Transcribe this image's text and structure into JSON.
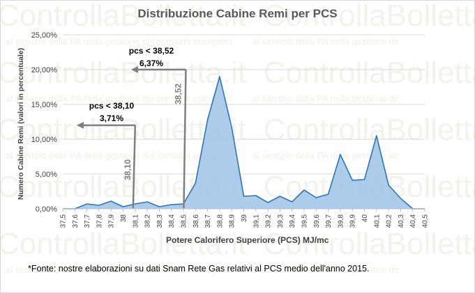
{
  "watermark": {
    "brand": "ControllaBolletta.it",
    "tagline_left": "al servizio della PA nella gestione dei consumi energetici",
    "tagline_right": "al servizio della PA nella gestione de"
  },
  "colors": {
    "area_fill": "#9dc3e6",
    "area_line": "#2e75b6",
    "annotation": "#7f7f7f",
    "grid": "#d9d9d9"
  },
  "chart_data": {
    "type": "area",
    "title": "Distribuzione  Cabine  Remi per PCS",
    "xlabel": "Potere Calorifero Superiore (PCS) MJ/mc",
    "ylabel": "Numero Cabine  Remi  (valori in percentuale)",
    "categories": [
      "37,5",
      "37,6",
      "37,7",
      "37,8",
      "37,9",
      "38",
      "38,1",
      "38,2",
      "38,3",
      "38,4",
      "38,5",
      "38,6",
      "38,7",
      "38,8",
      "38,9",
      "39",
      "39,1",
      "39,2",
      "39,3",
      "39,4",
      "39,5",
      "39,6",
      "39,7",
      "39,8",
      "39,9",
      "40",
      "40,1",
      "40,2",
      "40,3",
      "40,4",
      "40,5"
    ],
    "values": [
      0.0,
      0.0,
      0.7,
      0.5,
      1.1,
      0.3,
      0.7,
      1.0,
      0.3,
      0.6,
      0.7,
      3.7,
      12.8,
      19.0,
      11.7,
      1.8,
      1.9,
      0.9,
      1.8,
      1.0,
      2.7,
      1.6,
      2.1,
      7.8,
      4.1,
      4.2,
      10.5,
      3.4,
      1.5,
      0.0,
      0.0
    ],
    "ylim": [
      0,
      25
    ],
    "yticks": [
      "0,00%",
      "5,00%",
      "10,00%",
      "15,00%",
      "20,00%",
      "25,00%"
    ],
    "grid": true,
    "annotations": [
      {
        "line_at": 38.1,
        "line_label": "38,10",
        "text_line1": "pcs < 38,10",
        "text_line2": "3,71%",
        "arrow_level": 12
      },
      {
        "line_at": 38.52,
        "line_label": "38,52",
        "text_line1": "pcs < 38,52",
        "text_line2": "6,37%",
        "arrow_level": 20
      }
    ]
  },
  "footnote": "*Fonte: nostre elaborazioni su dati Snam Rete Gas relativi al PCS medio dell'anno 2015."
}
